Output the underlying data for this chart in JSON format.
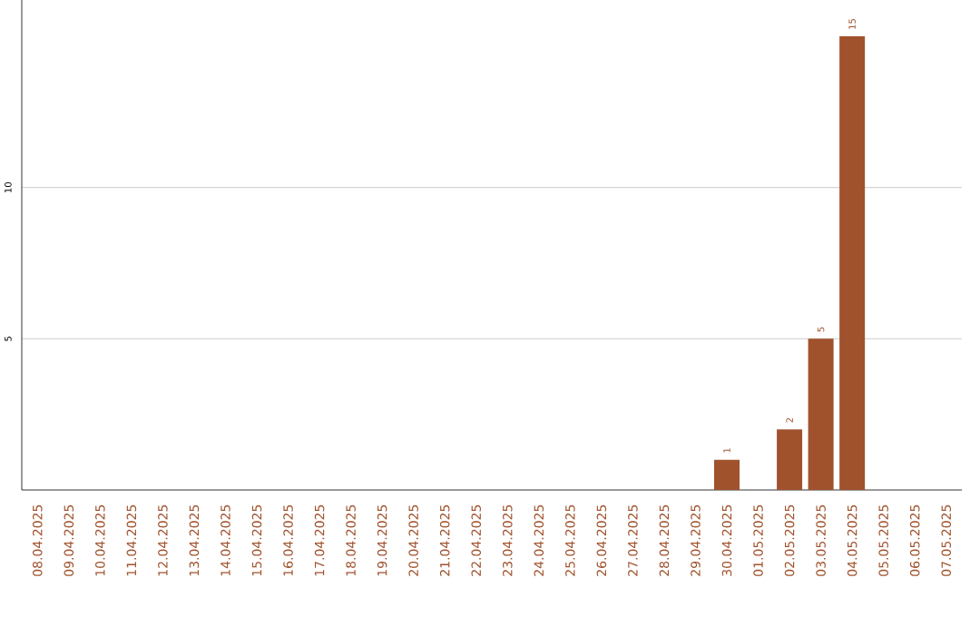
{
  "chart_data": {
    "type": "bar",
    "categories": [
      "08.04.2025",
      "09.04.2025",
      "10.04.2025",
      "11.04.2025",
      "12.04.2025",
      "13.04.2025",
      "14.04.2025",
      "15.04.2025",
      "16.04.2025",
      "17.04.2025",
      "18.04.2025",
      "19.04.2025",
      "20.04.2025",
      "21.04.2025",
      "22.04.2025",
      "23.04.2025",
      "24.04.2025",
      "25.04.2025",
      "26.04.2025",
      "27.04.2025",
      "28.04.2025",
      "29.04.2025",
      "30.04.2025",
      "01.05.2025",
      "02.05.2025",
      "03.05.2025",
      "04.05.2025",
      "05.05.2025",
      "06.05.2025",
      "07.05.2025"
    ],
    "values": [
      0,
      0,
      0,
      0,
      0,
      0,
      0,
      0,
      0,
      0,
      0,
      0,
      0,
      0,
      0,
      0,
      0,
      0,
      0,
      0,
      0,
      0,
      1,
      0,
      2,
      5,
      15,
      0,
      0,
      0
    ],
    "value_labels": [
      null,
      null,
      null,
      null,
      null,
      null,
      null,
      null,
      null,
      null,
      null,
      null,
      null,
      null,
      null,
      null,
      null,
      null,
      null,
      null,
      null,
      null,
      "1",
      null,
      "2",
      "5",
      "15",
      null,
      null,
      null
    ],
    "color": "#a0522d",
    "ylim": [
      0,
      16.2
    ],
    "yticks": [
      5,
      10
    ],
    "grid": "y"
  }
}
